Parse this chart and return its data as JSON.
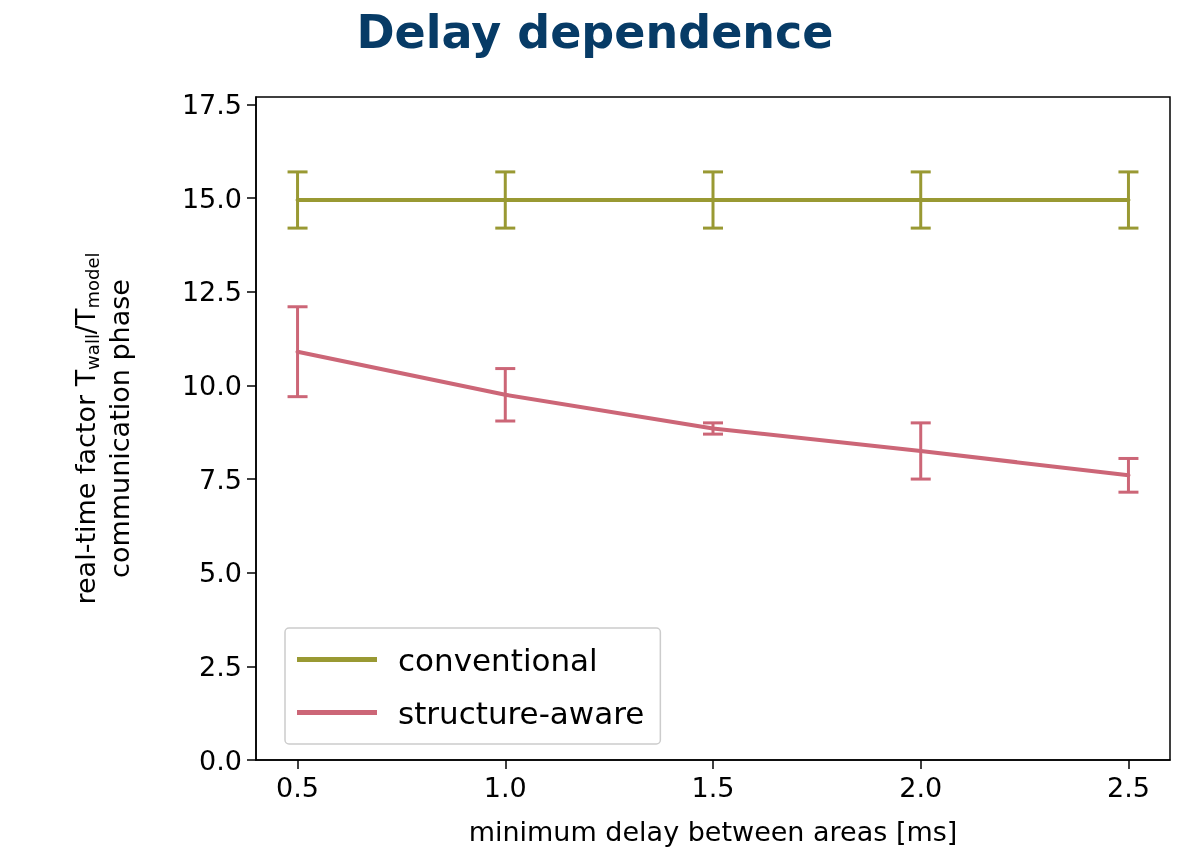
{
  "chart_data": {
    "type": "line",
    "title": "Delay dependence",
    "xlabel": "minimum delay between areas [ms]",
    "ylabel": "real-time factor T$_{wall}$/T$_{model}$\ncommunication phase",
    "x": [
      0.5,
      1.0,
      1.5,
      2.0,
      2.5
    ],
    "series": [
      {
        "name": "conventional",
        "color": "#999933",
        "values": [
          14.95,
          14.95,
          14.95,
          14.95,
          14.95
        ],
        "errors": [
          [
            14.2,
            15.7
          ],
          [
            14.2,
            15.7
          ],
          [
            14.2,
            15.7
          ],
          [
            14.2,
            15.7
          ],
          [
            14.2,
            15.7
          ]
        ]
      },
      {
        "name": "structure-aware",
        "color": "#cc6677",
        "values": [
          10.9,
          9.75,
          8.85,
          8.25,
          7.6
        ],
        "errors": [
          [
            9.7,
            12.1
          ],
          [
            9.05,
            10.45
          ],
          [
            8.7,
            9.0
          ],
          [
            7.5,
            9.0
          ],
          [
            7.15,
            8.05
          ]
        ]
      }
    ],
    "xlim": [
      0.4,
      2.6
    ],
    "xticks": [
      {
        "value": 0.5,
        "label": "0.5"
      },
      {
        "value": 1.0,
        "label": "1.0"
      },
      {
        "value": 1.5,
        "label": "1.5"
      },
      {
        "value": 2.0,
        "label": "2.0"
      },
      {
        "value": 2.5,
        "label": "2.5"
      }
    ],
    "ylim": [
      0,
      17.7
    ],
    "yticks": [
      {
        "value": 0,
        "label": "0.0"
      },
      {
        "value": 2.5,
        "label": "2.5"
      },
      {
        "value": 5,
        "label": "5.0"
      },
      {
        "value": 7.5,
        "label": "7.5"
      },
      {
        "value": 10,
        "label": "10.0"
      },
      {
        "value": 12.5,
        "label": "12.5"
      },
      {
        "value": 15,
        "label": "15.0"
      },
      {
        "value": 17.5,
        "label": "17.5"
      }
    ],
    "grid": false,
    "legend": "bottom left",
    "marker": "none",
    "line_style": "solid"
  }
}
